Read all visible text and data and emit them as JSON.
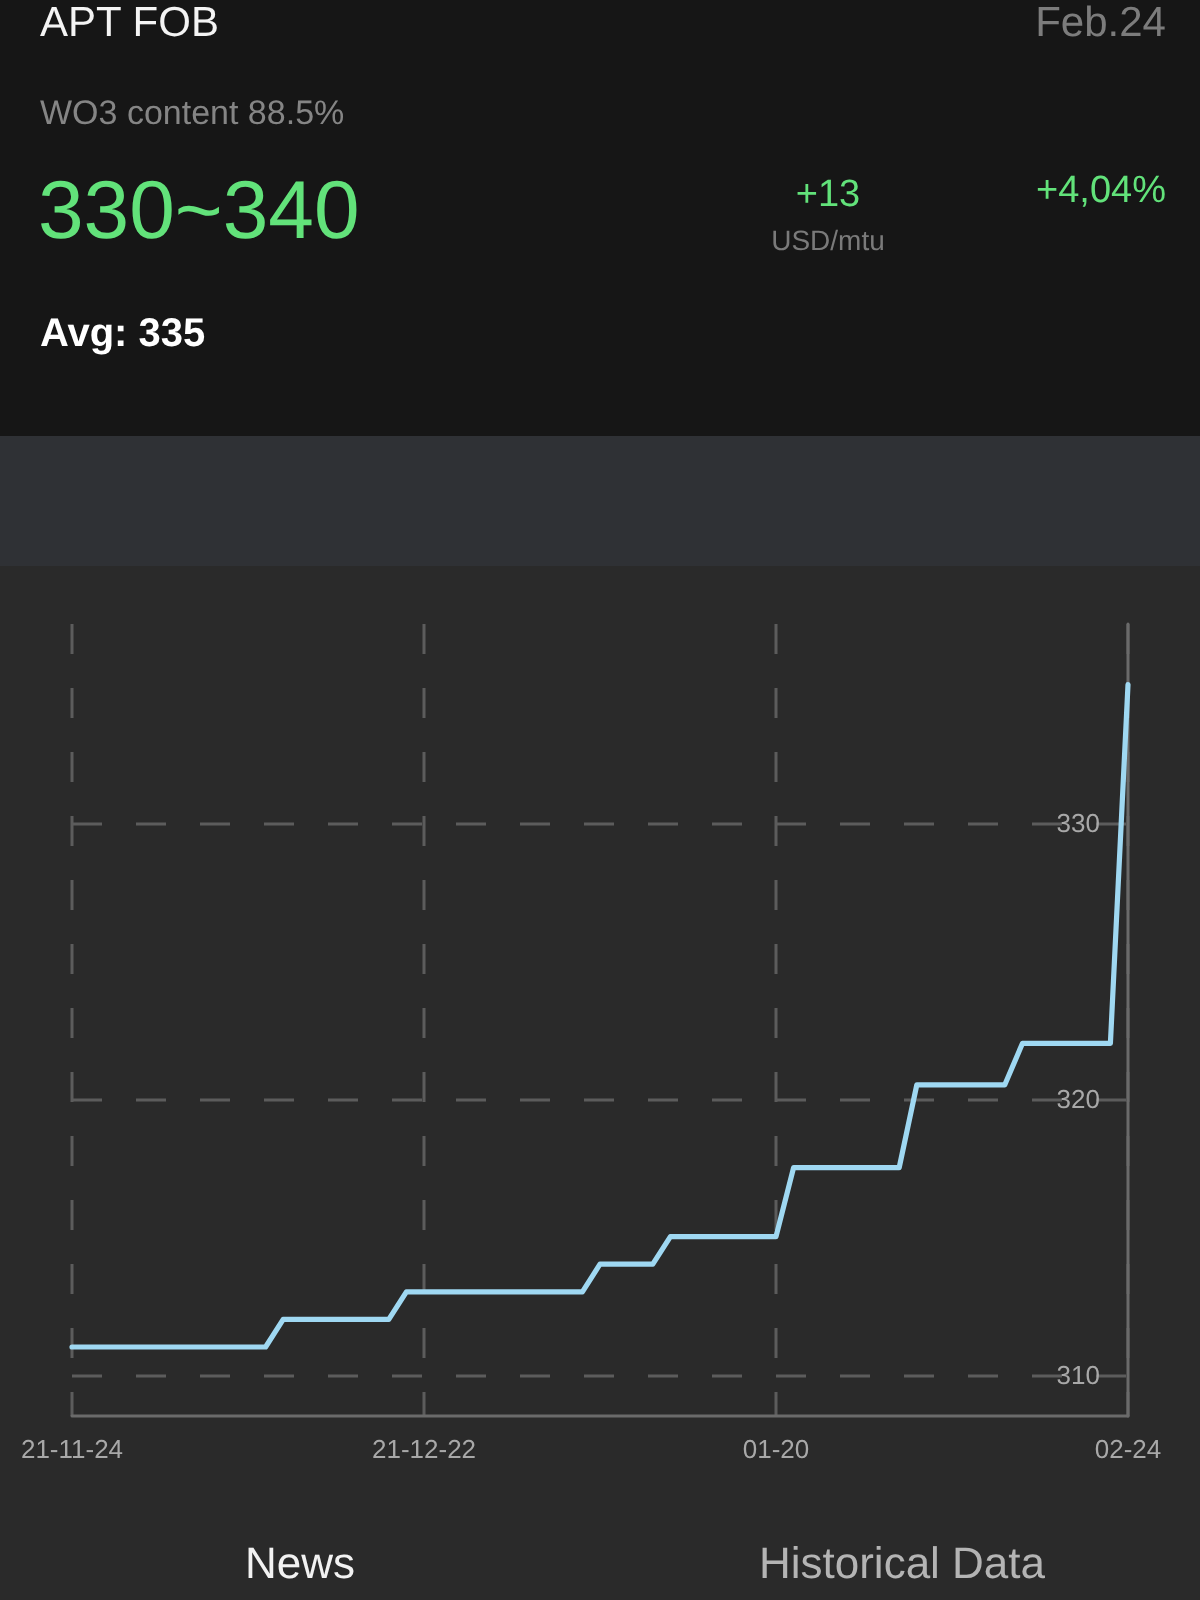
{
  "chart_data": {
    "type": "line",
    "title": "APT FOB",
    "subtitle": "WO3 content 88.5%",
    "annotations": [
      "Feb.24",
      "330~340",
      "+13",
      "USD/mtu",
      "+4,04%",
      "Avg: 335",
      "News",
      "Historical Data"
    ],
    "categories": [
      "21-11-24",
      null,
      null,
      null,
      null,
      null,
      null,
      null,
      null,
      null,
      null,
      null,
      null,
      null,
      null,
      null,
      null,
      null,
      null,
      null,
      "21-12-22",
      null,
      null,
      null,
      null,
      null,
      null,
      null,
      null,
      null,
      null,
      null,
      null,
      null,
      null,
      null,
      null,
      null,
      null,
      null,
      "01-20",
      null,
      null,
      null,
      null,
      null,
      null,
      null,
      null,
      null,
      null,
      null,
      null,
      null,
      null,
      null,
      null,
      null,
      null,
      null,
      "02-24"
    ],
    "values": [
      311,
      311,
      311,
      311,
      311,
      311,
      311,
      311,
      311,
      311,
      311,
      311,
      312,
      312,
      312,
      312,
      312,
      312,
      312,
      313,
      313,
      313,
      313,
      313,
      313,
      313,
      313,
      313,
      313,
      313,
      314,
      314,
      314,
      314,
      315,
      315,
      315,
      315,
      315,
      315,
      315,
      317.5,
      317.5,
      317.5,
      317.5,
      317.5,
      317.5,
      317.5,
      320.5,
      320.5,
      320.5,
      320.5,
      320.5,
      320.5,
      322,
      322,
      322,
      322,
      322,
      322,
      335
    ],
    "color": "#9fd8f2",
    "ylim": [
      308.5,
      337.2
    ],
    "yticks": [
      310,
      320,
      330
    ],
    "grid": true,
    "marker": "none"
  }
}
